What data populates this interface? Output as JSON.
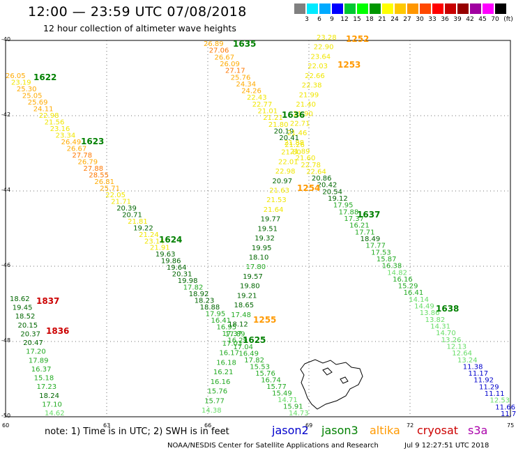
{
  "header": {
    "title": "12:00 — 23:59 UTC 07/08/2018",
    "subtitle": "12 hour collection of altimeter wave heights"
  },
  "colorbar": {
    "unit": "(ft)",
    "ticks": [
      "3",
      "6",
      "9",
      "12",
      "15",
      "18",
      "21",
      "24",
      "27",
      "30",
      "33",
      "36",
      "39",
      "42",
      "45",
      "70"
    ],
    "colors": [
      "#808080",
      "#00eaff",
      "#00aaff",
      "#0000ff",
      "#00c832",
      "#00ff00",
      "#009600",
      "#ffff00",
      "#ffc800",
      "#ff9600",
      "#ff4800",
      "#ff0000",
      "#c80000",
      "#960000",
      "#a000a0",
      "#ff00ff",
      "#000000"
    ]
  },
  "map": {
    "lat_ticks": [
      "-40",
      "-42",
      "-44",
      "-46",
      "-48",
      "-50"
    ],
    "lon_ticks": [
      "60",
      "63",
      "66",
      "69",
      "72",
      "75"
    ],
    "passes": [
      {
        "id": "1622",
        "color": "#008000"
      },
      {
        "id": "1623",
        "color": "#008000"
      },
      {
        "id": "1624",
        "color": "#008000"
      },
      {
        "id": "1625",
        "color": "#008000"
      },
      {
        "id": "1635",
        "color": "#008000"
      },
      {
        "id": "1636",
        "color": "#008000"
      },
      {
        "id": "1637",
        "color": "#008000"
      },
      {
        "id": "1638",
        "color": "#008000"
      },
      {
        "id": "1252",
        "color": "#ff9900"
      },
      {
        "id": "1253",
        "color": "#ff9900"
      },
      {
        "id": "1254",
        "color": "#ff9900"
      },
      {
        "id": "1255",
        "color": "#ff9900"
      },
      {
        "id": "1836",
        "color": "#cc0000"
      },
      {
        "id": "1837",
        "color": "#cc0000"
      }
    ],
    "tracks": [
      {
        "sat": "jason3",
        "values": [
          "26.05",
          "23.19",
          "25.30",
          "25.05",
          "25.69",
          "24.11",
          "22.98",
          "21.56",
          "23.16",
          "23.34",
          "26.49",
          "26.67",
          "27.78",
          "26.79",
          "27.88",
          "28.55",
          "26.81",
          "25.71",
          "22.05",
          "21.71",
          "20.39",
          "20.71",
          "21.81",
          "19.22",
          "21.24",
          "23.14",
          "21.91",
          "19.63",
          "19.86",
          "19.64",
          "20.31",
          "19.98",
          "17.82",
          "18.92",
          "18.23",
          "18.88",
          "17.95",
          "16.41",
          "16.95",
          "17.37",
          "16.29",
          "17.04",
          "16.49",
          "17.82",
          "15.53",
          "15.76",
          "16.74",
          "15.77",
          "15.49",
          "14.71",
          "15.91",
          "14.73"
        ]
      },
      {
        "sat": "jason3",
        "values": [
          "26.89",
          "27.06",
          "26.67",
          "26.09",
          "27.17",
          "25.76",
          "24.34",
          "24.26",
          "22.43",
          "22.77",
          "21.01",
          "21.21",
          "21.80",
          "20.19",
          "20.41",
          "21.26",
          "21.89",
          "21.60",
          "22.78",
          "22.64",
          "20.86",
          "20.42",
          "20.54",
          "19.12",
          "17.95",
          "17.88",
          "17.37",
          "16.21",
          "17.71",
          "18.49",
          "17.77",
          "17.53",
          "15.87",
          "16.38",
          "14.82",
          "16.16",
          "15.29",
          "16.41",
          "14.14",
          "14.49",
          "13.86",
          "13.82",
          "14.31",
          "14.70",
          "13.26",
          "12.13",
          "12.64",
          "13.24",
          "11.38",
          "11.17",
          "11.92",
          "11.29",
          "11.11",
          "12.53",
          "11.66",
          "11.7"
        ]
      },
      {
        "sat": "altika",
        "values": [
          "23.28",
          "22.90",
          "23.64",
          "22.03",
          "22.66",
          "22.38",
          "21.99",
          "21.40",
          "21.90",
          "22.71",
          "21.46",
          "21.88",
          "21.80",
          "22.01",
          "22.98",
          "20.97",
          "21.63",
          "21.53",
          "21.64",
          "19.77",
          "19.51",
          "19.32",
          "19.95",
          "18.10",
          "17.80",
          "19.57",
          "19.80",
          "19.21",
          "18.65",
          "17.48",
          "18.12",
          "17.89",
          "17.03",
          "16.17",
          "16.18",
          "16.21",
          "16.16",
          "15.76",
          "15.77",
          "14.38"
        ]
      },
      {
        "sat": "cryosat",
        "values": [
          "18.62",
          "19.45",
          "18.52",
          "20.15",
          "20.37",
          "20.47",
          "17.20",
          "17.89",
          "16.37",
          "15.18",
          "17.23",
          "18.24",
          "17.10",
          "14.62"
        ]
      }
    ]
  },
  "legend": {
    "note": "note:  1) Time is in UTC;  2) SWH is in feet",
    "jason2": "jason2",
    "jason3": "jason3",
    "altika": "altika",
    "cryosat": "cryosat",
    "s3a": "s3a"
  },
  "footer": {
    "credit": "NOAA/NESDIS Center for Satellite Applications and Research",
    "timestamp": "Jul  9 12:27:51 UTC 2018"
  }
}
